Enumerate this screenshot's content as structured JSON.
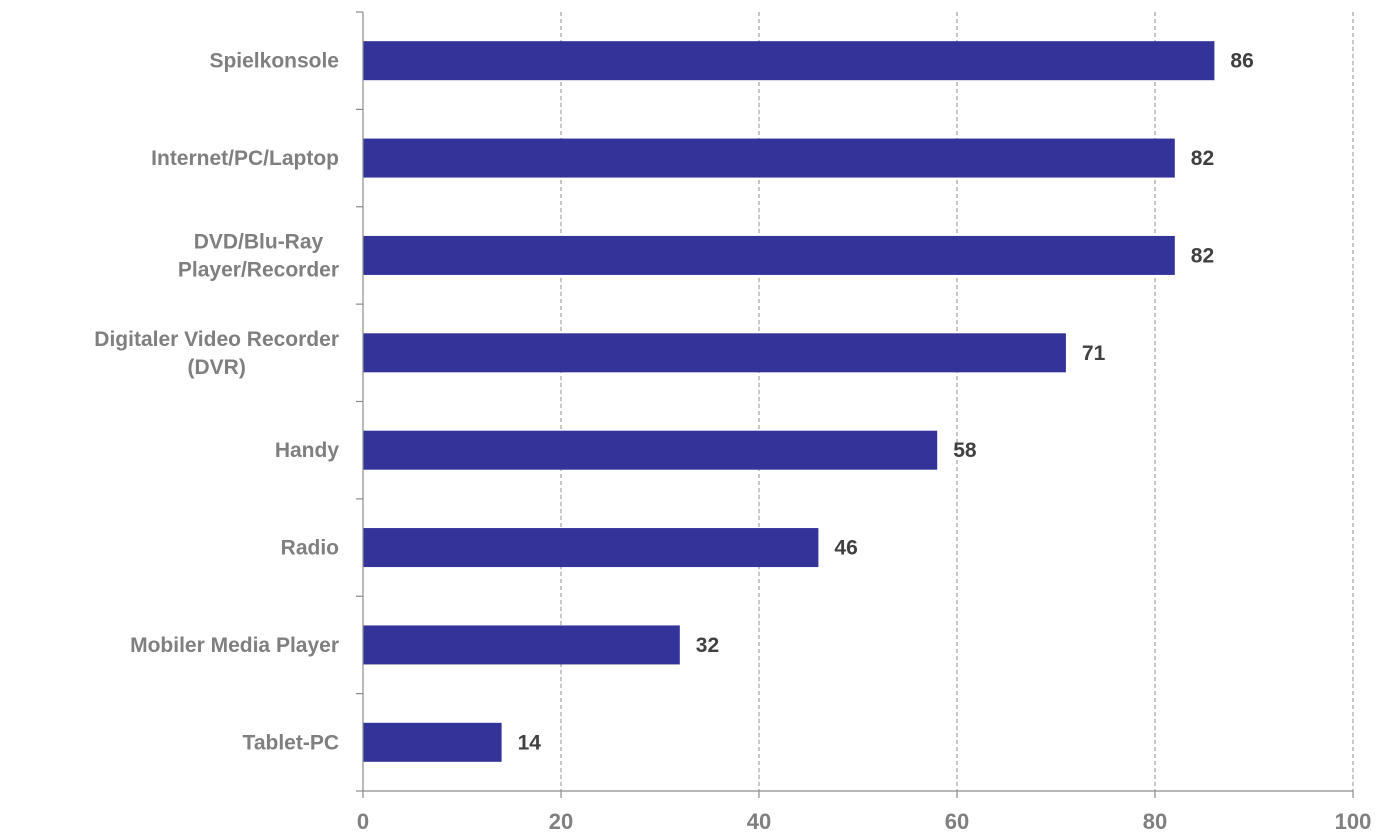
{
  "chart_data": {
    "type": "bar",
    "orientation": "horizontal",
    "categories": [
      [
        "Spielkonsole"
      ],
      [
        "Internet/PC/Laptop"
      ],
      [
        "DVD/Blu-Ray",
        "Player/Recorder"
      ],
      [
        "Digitaler Video Recorder",
        "(DVR)"
      ],
      [
        "Handy"
      ],
      [
        "Radio"
      ],
      [
        "Mobiler Media Player"
      ],
      [
        "Tablet-PC"
      ]
    ],
    "values": [
      86,
      82,
      82,
      71,
      58,
      46,
      32,
      14
    ],
    "xlim": [
      0,
      100
    ],
    "xticks": [
      0,
      20,
      40,
      60,
      80,
      100
    ],
    "grid": "vertical-dashed",
    "bar_color": "#333399",
    "title": "",
    "xlabel": "",
    "ylabel": ""
  }
}
